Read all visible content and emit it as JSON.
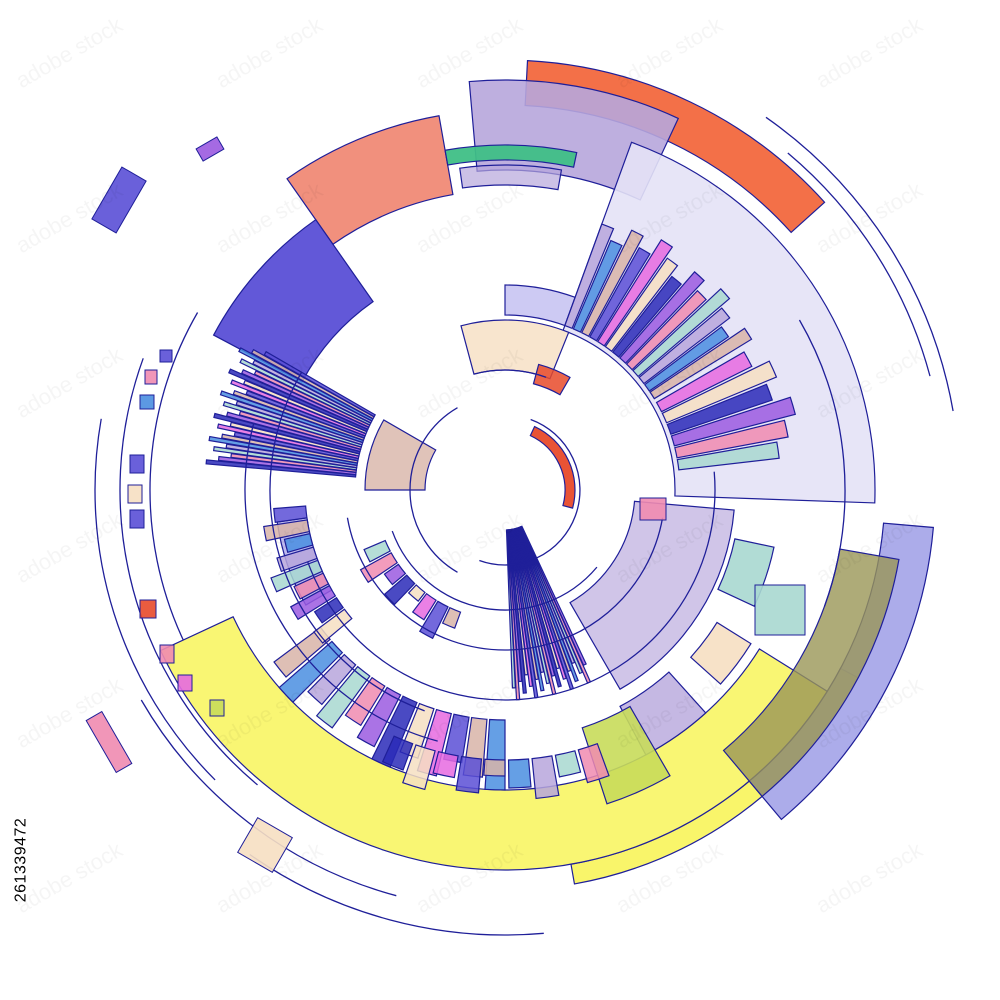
{
  "image": {
    "subject": "abstract-circular-infographic",
    "stock_id": "261339472",
    "watermark_text": "adobe stock",
    "outline_color": "#1f1f99",
    "palette": {
      "salmon": "#f08a76",
      "orange": "#f2683e",
      "lavender": "#b7a6dc",
      "pale_lavender": "#e4e2f6",
      "green": "#3fbf86",
      "indigo": "#5a4fd6",
      "deep_blue": "#2a2ab8",
      "yellow": "#f8f45a",
      "olive": "#9a9656",
      "periwinkle": "#9e9ee6",
      "teal_pale": "#a8d8d0",
      "peach": "#f6dfc2",
      "pink": "#f08bb0",
      "red": "#e84a2a",
      "violet": "#9b5ae0",
      "magenta": "#e66ae0",
      "sky": "#4a8ee0",
      "tan": "#d8b4a8",
      "khaki": "#c8dc5a"
    }
  }
}
